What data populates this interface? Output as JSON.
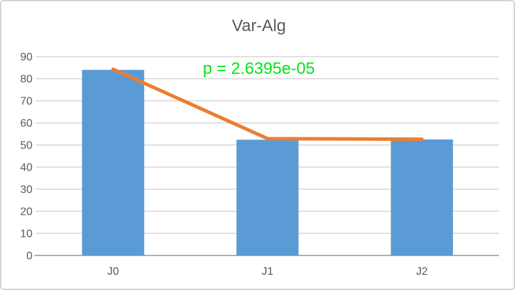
{
  "window": {
    "background": "#ffffff",
    "border_color": "#d4d4d4"
  },
  "chart_data": {
    "type": "bar",
    "title": "Var-Alg",
    "title_color": "#595959",
    "annotation": {
      "text": "p = 2.6395e-05",
      "color": "#00e614"
    },
    "categories": [
      "J0",
      "J1",
      "J2"
    ],
    "series": [
      {
        "name": "variance-bars",
        "type": "bar",
        "color": "#5b9bd5",
        "values": [
          84,
          52.4,
          52.5
        ]
      },
      {
        "name": "trend-line",
        "type": "line",
        "color": "#ed7d31",
        "values": [
          84.3,
          52.9,
          52.6
        ]
      }
    ],
    "ylim": [
      0,
      90
    ],
    "yticks": [
      0,
      10,
      20,
      30,
      40,
      50,
      60,
      70,
      80,
      90
    ],
    "grid": true,
    "legend": "none",
    "axis_text_color": "#595959",
    "gridline_color": "#d6d6d6",
    "axis_line_color": "#b0b0b0"
  }
}
